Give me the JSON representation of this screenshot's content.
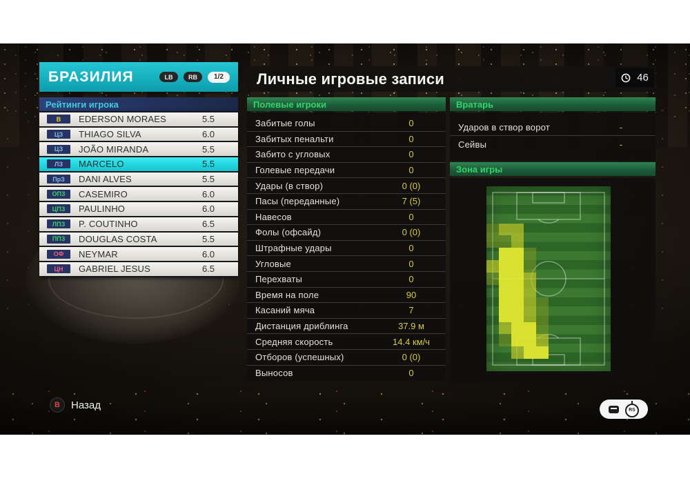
{
  "team_panel": {
    "title": "БРАЗИЛИЯ",
    "lb_badge": "LB",
    "rb_badge": "RB",
    "page_indicator": "1/2",
    "section_title": "Рейтинги игрока",
    "players": [
      {
        "pos": "В",
        "role": "gk",
        "name": "EDERSON MORAES",
        "rating": "5.5",
        "selected": false
      },
      {
        "pos": "ЦЗ",
        "role": "df",
        "name": "THIAGO SILVA",
        "rating": "6.0",
        "selected": false
      },
      {
        "pos": "ЦЗ",
        "role": "df",
        "name": "JOÃO MIRANDA",
        "rating": "5.5",
        "selected": false
      },
      {
        "pos": "ЛЗ",
        "role": "df",
        "name": "MARCELO",
        "rating": "5.5",
        "selected": true
      },
      {
        "pos": "ПрЗ",
        "role": "df",
        "name": "DANI ALVES",
        "rating": "5.5",
        "selected": false
      },
      {
        "pos": "ОПЗ",
        "role": "mf",
        "name": "CASEMIRO",
        "rating": "6.0",
        "selected": false
      },
      {
        "pos": "ЦПЗ",
        "role": "mf",
        "name": "PAULINHO",
        "rating": "6.0",
        "selected": false
      },
      {
        "pos": "ЛПЗ",
        "role": "mf",
        "name": "P. COUTINHO",
        "rating": "6.5",
        "selected": false
      },
      {
        "pos": "ППЗ",
        "role": "mf",
        "name": "DOUGLAS COSTA",
        "rating": "5.5",
        "selected": false
      },
      {
        "pos": "ОФ",
        "role": "fw",
        "name": "NEYMAR",
        "rating": "6.0",
        "selected": false
      },
      {
        "pos": "ЦН",
        "role": "fw",
        "name": "GABRIEL JESUS",
        "rating": "6.5",
        "selected": false
      }
    ]
  },
  "records_panel": {
    "title": "Личные игровые записи",
    "clock_value": "46",
    "field_players_header": "Полевые игроки",
    "goalkeeper_header": "Вратарь",
    "zone_header": "Зона игры",
    "field_stats": [
      {
        "label": "Забитые голы",
        "value": "0"
      },
      {
        "label": "Забитых пенальти",
        "value": "0"
      },
      {
        "label": "Забито с угловых",
        "value": "0"
      },
      {
        "label": "Голевые передачи",
        "value": "0"
      },
      {
        "label": "Удары (в створ)",
        "value": "0 (0)"
      },
      {
        "label": "Пасы (переданные)",
        "value": "7 (5)"
      },
      {
        "label": "Навесов",
        "value": "0"
      },
      {
        "label": "Фолы (офсайд)",
        "value": "0 (0)"
      },
      {
        "label": "Штрафные удары",
        "value": "0"
      },
      {
        "label": "Угловые",
        "value": "0"
      },
      {
        "label": "Перехваты",
        "value": "0"
      },
      {
        "label": "Время на поле",
        "value": "90"
      },
      {
        "label": "Касаний мяча",
        "value": "7"
      },
      {
        "label": "Дистанция дриблинга",
        "value": "37.9 м"
      },
      {
        "label": "Средняя скорость",
        "value": "14.4 км/ч"
      },
      {
        "label": "Отборов (успешных)",
        "value": "0 (0)"
      },
      {
        "label": "Выносов",
        "value": "0"
      }
    ],
    "gk_stats": [
      {
        "label": "Ударов в створ ворот",
        "value": "-"
      },
      {
        "label": "Сейвы",
        "value": "-"
      }
    ],
    "heatmap": {
      "cols": 10,
      "rows": 15,
      "grid": [
        [
          0,
          0,
          0,
          0,
          0,
          0,
          0,
          0,
          0,
          0
        ],
        [
          0,
          0,
          0,
          0,
          0,
          0,
          0,
          0,
          0,
          0
        ],
        [
          0,
          0,
          0,
          0,
          0,
          0,
          0,
          0,
          0,
          0
        ],
        [
          1,
          2,
          2,
          0,
          0,
          0,
          0,
          0,
          0,
          0
        ],
        [
          1,
          1,
          2,
          0,
          0,
          0,
          0,
          0,
          0,
          0
        ],
        [
          0,
          3,
          3,
          1,
          0,
          0,
          0,
          0,
          0,
          0
        ],
        [
          2,
          3,
          3,
          1,
          0,
          0,
          0,
          0,
          0,
          0
        ],
        [
          1,
          3,
          3,
          2,
          0,
          0,
          0,
          0,
          0,
          0
        ],
        [
          0,
          3,
          3,
          2,
          0,
          0,
          0,
          0,
          0,
          0
        ],
        [
          0,
          3,
          3,
          2,
          1,
          0,
          0,
          0,
          0,
          0
        ],
        [
          0,
          3,
          3,
          2,
          1,
          0,
          0,
          0,
          0,
          0
        ],
        [
          0,
          2,
          3,
          3,
          1,
          0,
          0,
          0,
          0,
          0
        ],
        [
          0,
          1,
          3,
          3,
          2,
          0,
          0,
          0,
          0,
          0
        ],
        [
          0,
          0,
          2,
          3,
          3,
          0,
          0,
          0,
          0,
          0
        ],
        [
          0,
          0,
          0,
          0,
          0,
          0,
          0,
          0,
          0,
          0
        ]
      ],
      "intensity_colors": {
        "1": "rgba(140,160,35,0.45)",
        "2": "rgba(188,198,42,0.72)",
        "3": "rgba(226,232,48,0.95)"
      }
    }
  },
  "footer": {
    "back_label": "Назад",
    "back_button_glyph": "B",
    "rs_icon_label": "RS"
  },
  "colors": {
    "accent_teal": "#18b7c9",
    "selected_row_cyan": "#2fe3ea",
    "value_yellow": "#d6ca45",
    "section_green_text": "#35d36b",
    "pos_gk": "#e8d22e",
    "pos_df": "#86b8e8",
    "pos_mf": "#3ecf62",
    "pos_fw": "#ef5e7e"
  }
}
